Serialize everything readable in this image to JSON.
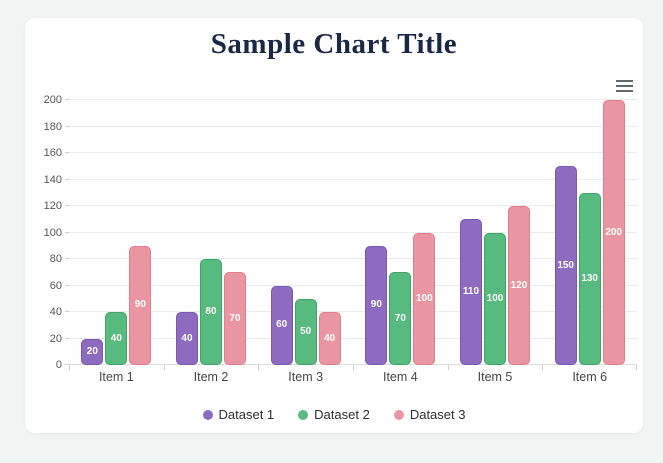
{
  "page": {
    "background": "#f2f3f3",
    "card_background": "#ffffff"
  },
  "header": {
    "title": "Sample Chart Title",
    "title_color": "#1a2745"
  },
  "toolbar": {
    "menu_icon": "hamburger-menu-icon"
  },
  "chart_data": {
    "type": "bar",
    "title": "Sample Chart Title",
    "categories": [
      "Item 1",
      "Item 2",
      "Item 3",
      "Item 4",
      "Item 5",
      "Item 6"
    ],
    "series": [
      {
        "name": "Dataset 1",
        "values": [
          20,
          40,
          60,
          90,
          110,
          150
        ],
        "color": "#8d6bc1",
        "border_color": "#7a57b0"
      },
      {
        "name": "Dataset 2",
        "values": [
          40,
          80,
          50,
          70,
          100,
          130
        ],
        "color": "#57ba7e",
        "border_color": "#3ea566"
      },
      {
        "name": "Dataset 3",
        "values": [
          90,
          70,
          40,
          100,
          120,
          200
        ],
        "color": "#ea96a2",
        "border_color": "#e27d8d"
      }
    ],
    "xlabel": "",
    "ylabel": "",
    "ylim": [
      0,
      200
    ],
    "ytick_step": 20,
    "grid": true,
    "legend_position": "bottom",
    "value_labels": "white bold, centered inside bars"
  }
}
